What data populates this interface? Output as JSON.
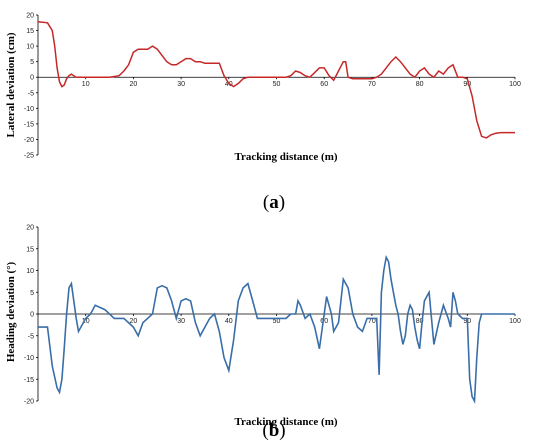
{
  "chart_data": [
    {
      "type": "line",
      "caption_letter": "a",
      "caption_open": "(",
      "caption_close": ")",
      "xlabel": "Tracking distance (m)",
      "ylabel": "Lateral deviation (cm)",
      "xlim": [
        0,
        100
      ],
      "ylim": [
        -25,
        20
      ],
      "xticks": [
        10,
        20,
        30,
        40,
        50,
        60,
        70,
        80,
        90,
        100
      ],
      "yticks": [
        20,
        15,
        10,
        5,
        0,
        -5,
        -10,
        -15,
        -20,
        -25
      ],
      "color": "#c62828",
      "series": [
        {
          "x": [
            0,
            2,
            3,
            3.5,
            4,
            4.5,
            5,
            5.5,
            6,
            6.5,
            7,
            7.5,
            8,
            9,
            10,
            12,
            15,
            17,
            18,
            19,
            20,
            21,
            22,
            23,
            24,
            25,
            26,
            27,
            28,
            29,
            30,
            31,
            32,
            33,
            34,
            35,
            36,
            37,
            38,
            39,
            40,
            41,
            42,
            43,
            44,
            46,
            48,
            50,
            52,
            53,
            54,
            55,
            56,
            57,
            58,
            59,
            60,
            61,
            62,
            63,
            64,
            64.5,
            65,
            66,
            68,
            70,
            71,
            72,
            73,
            74,
            75,
            76,
            77,
            78,
            79,
            80,
            81,
            82,
            83,
            84,
            85,
            86,
            87,
            88,
            89,
            90,
            91,
            92,
            93,
            94,
            95,
            96,
            97,
            98,
            99,
            100
          ],
          "y": [
            17.8,
            17.5,
            15,
            10,
            3,
            -1.5,
            -3,
            -2.5,
            -0.5,
            0.5,
            1,
            0.5,
            0,
            0,
            0,
            0,
            0,
            0.5,
            2,
            4,
            8,
            9,
            9,
            9,
            10,
            9,
            7,
            5,
            4,
            4,
            5,
            6,
            6,
            5,
            5,
            4.5,
            4.5,
            4.5,
            4.5,
            0.5,
            -2,
            -3,
            -2,
            -0.5,
            0,
            0,
            0,
            0,
            0,
            0.5,
            2,
            1.5,
            0.5,
            0,
            1.5,
            3,
            3,
            0.5,
            -1,
            2,
            5,
            5,
            0,
            -0.5,
            -0.5,
            -0.5,
            0,
            1,
            3,
            5,
            6.5,
            5,
            3,
            1,
            0,
            2,
            3,
            1,
            0,
            2,
            1,
            3,
            4,
            0,
            0,
            -0.5,
            -6,
            -14,
            -19,
            -19.5,
            -18.5,
            -18,
            -17.8,
            -17.8,
            -17.8,
            -17.8
          ]
        }
      ]
    },
    {
      "type": "line",
      "caption_letter": "b",
      "caption_open": "(",
      "caption_close": ")",
      "xlabel": "Tracking distance (m)",
      "ylabel": "Heading deviation (°)",
      "xlim": [
        0,
        100
      ],
      "ylim": [
        -20,
        20
      ],
      "xticks": [
        10,
        20,
        30,
        40,
        50,
        60,
        70,
        80,
        90,
        100
      ],
      "yticks": [
        20,
        15,
        10,
        5,
        0,
        -5,
        -10,
        -15,
        -20
      ],
      "color": "#3a6ea8",
      "series": [
        {
          "x": [
            0,
            2,
            3,
            4,
            4.5,
            5,
            5.5,
            6,
            6.5,
            7,
            7.5,
            8,
            8.5,
            9,
            10,
            11,
            12,
            14,
            16,
            18,
            20,
            21,
            22,
            24,
            25,
            26,
            27,
            28,
            29,
            30,
            31,
            32,
            33,
            34,
            35,
            36,
            37,
            38,
            39,
            40,
            41,
            42,
            43,
            44,
            45,
            46,
            47,
            48,
            49,
            50,
            51,
            52,
            53,
            54,
            54.5,
            55,
            56,
            57,
            58,
            59,
            60,
            60.5,
            61,
            61.5,
            62,
            63,
            64,
            65,
            66,
            67,
            68,
            69,
            70,
            71,
            71.5,
            72,
            72.5,
            73,
            73.5,
            74,
            74.5,
            75,
            75.5,
            76,
            76.5,
            77,
            77.5,
            78,
            78.5,
            79,
            79.5,
            80,
            80.5,
            81,
            82,
            83,
            84,
            85,
            86,
            86.5,
            87,
            87.5,
            88,
            89,
            90,
            90.5,
            91,
            91.5,
            92,
            92.5,
            93,
            94,
            95,
            96,
            98,
            100
          ],
          "y": [
            -3,
            -3,
            -12,
            -17,
            -18,
            -15,
            -8,
            0,
            6,
            7,
            3,
            -1,
            -4,
            -3,
            -1,
            0,
            2,
            1,
            -1,
            -1,
            -3,
            -5,
            -2,
            0,
            6,
            6.5,
            6,
            3,
            -1,
            3,
            3.5,
            3,
            -2,
            -5,
            -3,
            -1,
            0,
            -4,
            -10,
            -13,
            -6,
            3,
            6,
            7,
            3,
            -1,
            -1,
            -1,
            -1,
            -1,
            -1,
            -1,
            0,
            0,
            3,
            2,
            -1,
            0,
            -3,
            -8,
            0,
            4,
            2,
            0,
            -4,
            -2,
            8,
            6,
            0,
            -3,
            -4,
            -1,
            -1,
            -1,
            -14,
            5,
            10,
            13,
            12,
            8,
            5,
            2,
            0,
            -4,
            -7,
            -5,
            0,
            2,
            1,
            -3,
            -6,
            -8,
            -2,
            3,
            5,
            -7,
            -2,
            2,
            -1,
            -3,
            5,
            3,
            0,
            -1,
            -1,
            -15,
            -19,
            -20,
            -10,
            -2,
            0,
            0,
            0,
            0,
            0,
            0
          ]
        }
      ]
    }
  ]
}
